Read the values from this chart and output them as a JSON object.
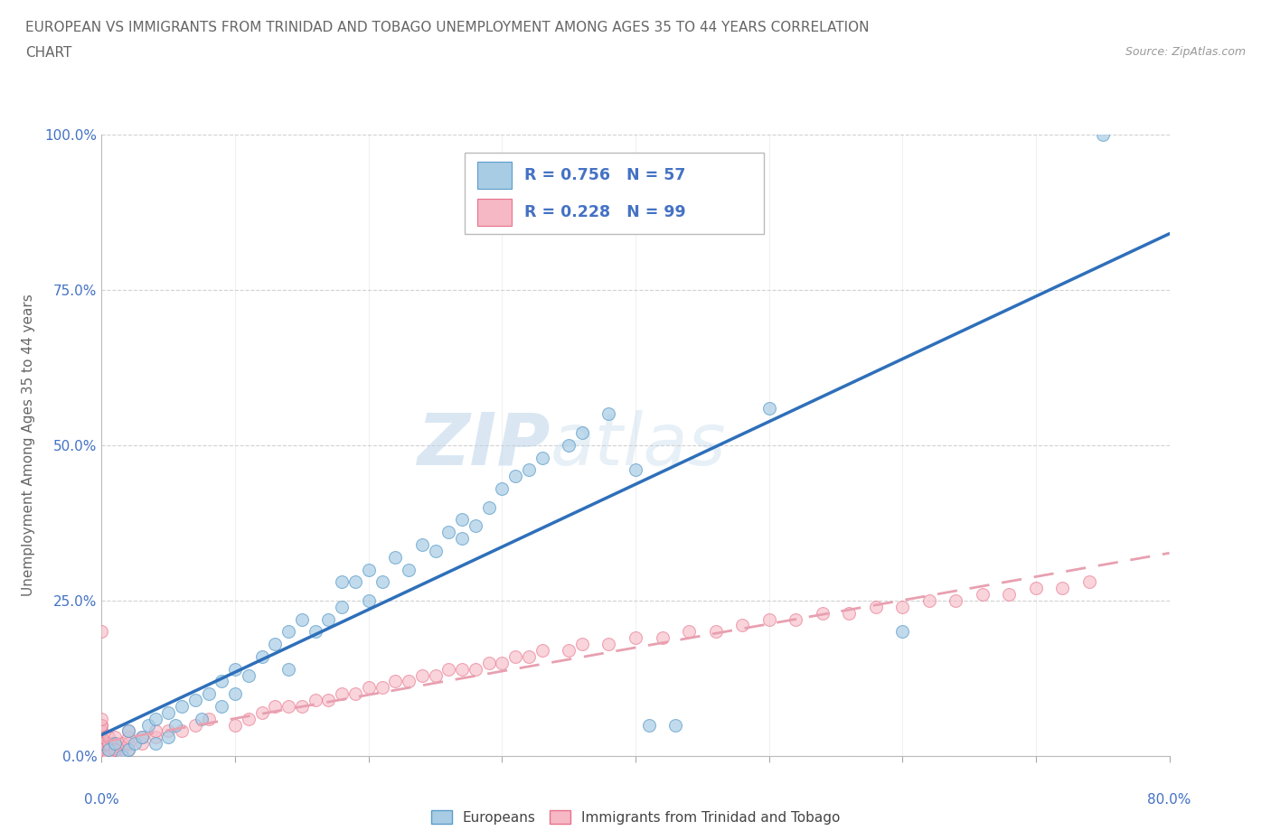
{
  "title_line1": "EUROPEAN VS IMMIGRANTS FROM TRINIDAD AND TOBAGO UNEMPLOYMENT AMONG AGES 35 TO 44 YEARS CORRELATION",
  "title_line2": "CHART",
  "source_text": "Source: ZipAtlas.com",
  "ylabel": "Unemployment Among Ages 35 to 44 years",
  "xlim": [
    0.0,
    0.8
  ],
  "ylim": [
    0.0,
    1.0
  ],
  "yticks": [
    0.0,
    0.25,
    0.5,
    0.75,
    1.0
  ],
  "blue_color": "#a8cce4",
  "blue_edge_color": "#5b9dc9",
  "pink_color": "#f5b8c4",
  "pink_edge_color": "#e8718a",
  "trend_blue_color": "#2e6fba",
  "trend_pink_color": "#e8a0b0",
  "R_blue": 0.756,
  "N_blue": 57,
  "R_pink": 0.228,
  "N_pink": 99,
  "legend_label_blue": "Europeans",
  "legend_label_pink": "Immigrants from Trinidad and Tobago",
  "background_color": "#ffffff",
  "grid_color": "#cccccc",
  "title_color": "#666666",
  "axis_label_color": "#666666",
  "tick_label_color": "#4472c4",
  "stat_text_color": "#4472c4",
  "watermark_color": "#d0dff0",
  "blue_scatter_x": [
    0.005,
    0.01,
    0.015,
    0.02,
    0.02,
    0.025,
    0.03,
    0.035,
    0.04,
    0.04,
    0.05,
    0.05,
    0.055,
    0.06,
    0.07,
    0.075,
    0.08,
    0.09,
    0.09,
    0.1,
    0.1,
    0.11,
    0.12,
    0.13,
    0.14,
    0.14,
    0.15,
    0.16,
    0.17,
    0.18,
    0.18,
    0.19,
    0.2,
    0.2,
    0.21,
    0.22,
    0.23,
    0.24,
    0.25,
    0.26,
    0.27,
    0.27,
    0.28,
    0.29,
    0.3,
    0.31,
    0.32,
    0.33,
    0.35,
    0.36,
    0.38,
    0.4,
    0.41,
    0.43,
    0.5,
    0.6,
    0.75
  ],
  "blue_scatter_y": [
    0.01,
    0.02,
    0.0,
    0.01,
    0.04,
    0.02,
    0.03,
    0.05,
    0.02,
    0.06,
    0.03,
    0.07,
    0.05,
    0.08,
    0.09,
    0.06,
    0.1,
    0.08,
    0.12,
    0.1,
    0.14,
    0.13,
    0.16,
    0.18,
    0.2,
    0.14,
    0.22,
    0.2,
    0.22,
    0.24,
    0.28,
    0.28,
    0.25,
    0.3,
    0.28,
    0.32,
    0.3,
    0.34,
    0.33,
    0.36,
    0.35,
    0.38,
    0.37,
    0.4,
    0.43,
    0.45,
    0.46,
    0.48,
    0.5,
    0.52,
    0.55,
    0.46,
    0.05,
    0.05,
    0.56,
    0.2,
    1.0
  ],
  "pink_scatter_x": [
    0.0,
    0.0,
    0.0,
    0.0,
    0.0,
    0.0,
    0.0,
    0.0,
    0.0,
    0.0,
    0.0,
    0.0,
    0.0,
    0.0,
    0.0,
    0.0,
    0.0,
    0.0,
    0.0,
    0.0,
    0.005,
    0.005,
    0.005,
    0.005,
    0.005,
    0.005,
    0.005,
    0.005,
    0.01,
    0.01,
    0.01,
    0.01,
    0.01,
    0.01,
    0.01,
    0.015,
    0.015,
    0.02,
    0.02,
    0.02,
    0.02,
    0.03,
    0.03,
    0.04,
    0.04,
    0.05,
    0.06,
    0.07,
    0.08,
    0.1,
    0.11,
    0.12,
    0.13,
    0.14,
    0.15,
    0.16,
    0.17,
    0.18,
    0.19,
    0.2,
    0.21,
    0.22,
    0.23,
    0.24,
    0.25,
    0.26,
    0.27,
    0.28,
    0.29,
    0.3,
    0.31,
    0.32,
    0.33,
    0.35,
    0.36,
    0.38,
    0.4,
    0.42,
    0.44,
    0.46,
    0.48,
    0.5,
    0.52,
    0.54,
    0.56,
    0.58,
    0.6,
    0.62,
    0.64,
    0.66,
    0.68,
    0.7,
    0.72,
    0.74,
    0.0,
    0.005,
    0.01
  ],
  "pink_scatter_y": [
    0.0,
    0.0,
    0.0,
    0.0,
    0.0,
    0.0,
    0.01,
    0.01,
    0.01,
    0.02,
    0.02,
    0.02,
    0.03,
    0.03,
    0.04,
    0.04,
    0.05,
    0.05,
    0.06,
    0.2,
    0.0,
    0.0,
    0.0,
    0.01,
    0.01,
    0.02,
    0.02,
    0.03,
    0.0,
    0.0,
    0.01,
    0.01,
    0.02,
    0.02,
    0.03,
    0.01,
    0.02,
    0.01,
    0.02,
    0.03,
    0.04,
    0.02,
    0.03,
    0.03,
    0.04,
    0.04,
    0.04,
    0.05,
    0.06,
    0.05,
    0.06,
    0.07,
    0.08,
    0.08,
    0.08,
    0.09,
    0.09,
    0.1,
    0.1,
    0.11,
    0.11,
    0.12,
    0.12,
    0.13,
    0.13,
    0.14,
    0.14,
    0.14,
    0.15,
    0.15,
    0.16,
    0.16,
    0.17,
    0.17,
    0.18,
    0.18,
    0.19,
    0.19,
    0.2,
    0.2,
    0.21,
    0.22,
    0.22,
    0.23,
    0.23,
    0.24,
    0.24,
    0.25,
    0.25,
    0.26,
    0.26,
    0.27,
    0.27,
    0.28,
    0.0,
    0.0,
    0.01
  ],
  "blue_trend_x": [
    0.0,
    0.8
  ],
  "blue_trend_y": [
    0.0,
    0.78
  ],
  "pink_trend_x": [
    0.0,
    0.8
  ],
  "pink_trend_y": [
    0.02,
    0.4
  ]
}
